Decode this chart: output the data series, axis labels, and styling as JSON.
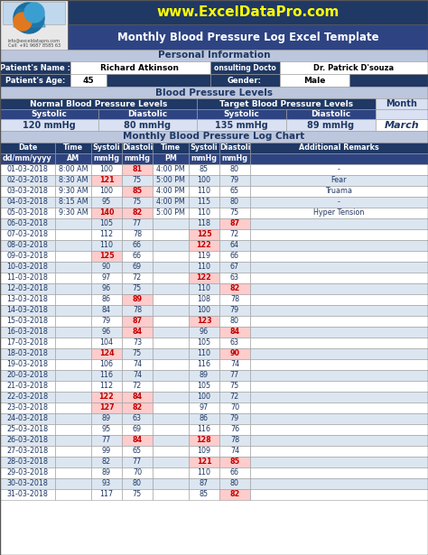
{
  "website": "www.ExcelDataPro.com",
  "title": "Monthly Blood Pressure Log Excel Template",
  "personal_info_header": "Personal Information",
  "patient_name_label": "Patient's Name :",
  "patient_name": "Richard Atkinson",
  "consulting_doctor_label": "onsulting Docto",
  "consulting_doctor": "Dr. Patrick D'souza",
  "patient_age_label": "Patient's Age:",
  "patient_age": "45",
  "gender_label": "Gender:",
  "gender": "Male",
  "bp_levels_header": "Blood Pressure Levels",
  "normal_bp_header": "Normal Blood Pressure Levels",
  "target_bp_header": "Target Blood Pressure Levels",
  "month_label": "Month",
  "month_value": "March",
  "normal_systolic_label": "Systolic",
  "normal_systolic_value": "120 mmHg",
  "normal_diastolic_label": "Diastolic",
  "normal_diastolic_value": "80 mmHg",
  "target_systolic_label": "Systolic",
  "target_systolic_value": "135 mmHg",
  "target_diastolic_label": "Diastolic",
  "target_diastolic_value": "89 mmHg",
  "log_chart_header": "Monthly Blood Pressure Log Chart",
  "col_headers_row1": [
    "Date",
    "Time",
    "Systoli",
    "Diastoli",
    "Time",
    "Systoli",
    "Diastoli",
    "Additional Remarks"
  ],
  "col_headers_row2": [
    "dd/mm/yyyy",
    "AM",
    "mmHg",
    "mmHg",
    "PM",
    "mmHg",
    "mmHg",
    ""
  ],
  "rows": [
    [
      "01-03-2018",
      "8:00 AM",
      "100",
      "81",
      "4:00 PM",
      "85",
      "80",
      "-"
    ],
    [
      "02-03-2018",
      "8:30 AM",
      "121",
      "75",
      "5:00 PM",
      "100",
      "79",
      "Fear"
    ],
    [
      "03-03-2018",
      "9:30 AM",
      "100",
      "85",
      "4:00 PM",
      "110",
      "65",
      "Truama"
    ],
    [
      "04-03-2018",
      "8:15 AM",
      "95",
      "75",
      "4:00 PM",
      "115",
      "80",
      "-"
    ],
    [
      "05-03-2018",
      "9:30 AM",
      "140",
      "82",
      "5:00 PM",
      "110",
      "75",
      "Hyper Tension"
    ],
    [
      "06-03-2018",
      "",
      "105",
      "77",
      "",
      "118",
      "87",
      ""
    ],
    [
      "07-03-2018",
      "",
      "112",
      "78",
      "",
      "125",
      "72",
      ""
    ],
    [
      "08-03-2018",
      "",
      "110",
      "66",
      "",
      "122",
      "64",
      ""
    ],
    [
      "09-03-2018",
      "",
      "125",
      "66",
      "",
      "119",
      "66",
      ""
    ],
    [
      "10-03-2018",
      "",
      "90",
      "69",
      "",
      "110",
      "67",
      ""
    ],
    [
      "11-03-2018",
      "",
      "97",
      "72",
      "",
      "122",
      "63",
      ""
    ],
    [
      "12-03-2018",
      "",
      "96",
      "75",
      "",
      "110",
      "82",
      ""
    ],
    [
      "13-03-2018",
      "",
      "86",
      "89",
      "",
      "108",
      "78",
      ""
    ],
    [
      "14-03-2018",
      "",
      "84",
      "78",
      "",
      "100",
      "79",
      ""
    ],
    [
      "15-03-2018",
      "",
      "79",
      "87",
      "",
      "123",
      "80",
      ""
    ],
    [
      "16-03-2018",
      "",
      "96",
      "84",
      "",
      "96",
      "84",
      ""
    ],
    [
      "17-03-2018",
      "",
      "104",
      "73",
      "",
      "105",
      "63",
      ""
    ],
    [
      "18-03-2018",
      "",
      "124",
      "75",
      "",
      "110",
      "90",
      ""
    ],
    [
      "19-03-2018",
      "",
      "106",
      "74",
      "",
      "116",
      "74",
      ""
    ],
    [
      "20-03-2018",
      "",
      "116",
      "74",
      "",
      "89",
      "77",
      ""
    ],
    [
      "21-03-2018",
      "",
      "112",
      "72",
      "",
      "105",
      "75",
      ""
    ],
    [
      "22-03-2018",
      "",
      "122",
      "84",
      "",
      "100",
      "72",
      ""
    ],
    [
      "23-03-2018",
      "",
      "127",
      "82",
      "",
      "97",
      "70",
      ""
    ],
    [
      "24-03-2018",
      "",
      "89",
      "63",
      "",
      "86",
      "79",
      ""
    ],
    [
      "25-03-2018",
      "",
      "95",
      "69",
      "",
      "116",
      "76",
      ""
    ],
    [
      "26-03-2018",
      "",
      "77",
      "84",
      "",
      "128",
      "78",
      ""
    ],
    [
      "27-03-2018",
      "",
      "99",
      "65",
      "",
      "109",
      "74",
      ""
    ],
    [
      "28-03-2018",
      "",
      "82",
      "77",
      "",
      "121",
      "85",
      ""
    ],
    [
      "29-03-2018",
      "",
      "89",
      "70",
      "",
      "110",
      "66",
      ""
    ],
    [
      "30-03-2018",
      "",
      "93",
      "80",
      "",
      "87",
      "80",
      ""
    ],
    [
      "31-03-2018",
      "",
      "117",
      "75",
      "",
      "85",
      "82",
      ""
    ]
  ],
  "highlight_sys_threshold": 120,
  "highlight_dia_threshold": 80,
  "colors": {
    "dark_navy": "#1F3864",
    "medium_navy": "#2E4482",
    "light_blue_header": "#BCC6DD",
    "very_light_blue": "#D9E1F2",
    "white": "#FFFFFF",
    "red_text": "#C00000",
    "pink_bg": "#FFCCCC",
    "row_alt1": "#FFFFFF",
    "row_alt2": "#DCE6F1",
    "border": "#999999",
    "yellow_url": "#FFFF00",
    "logo_bg": "#E8E8E8",
    "logo_inner": "#C8DCF0"
  }
}
